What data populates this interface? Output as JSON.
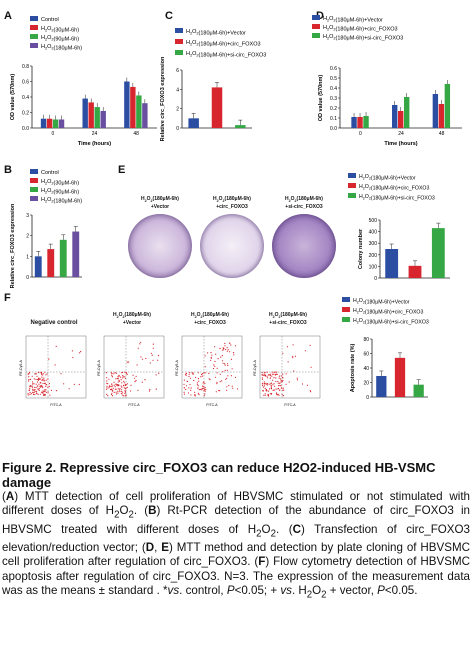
{
  "colors": {
    "blue": "#2b4ea2",
    "red": "#d7262e",
    "green": "#35a845",
    "purple": "#6a4fa0",
    "grey": "#777777"
  },
  "panels": {
    "A": {
      "label": "A",
      "legend": [
        "Control",
        "H2O2(30μM-6h)",
        "H2O2(90μM-6h)",
        "H2O2(180μM-6h)"
      ],
      "ylabel": "OD value (570nm)",
      "xlabel": "Time (hours)",
      "chart_data": {
        "type": "bar",
        "categories": [
          "0",
          "24",
          "48"
        ],
        "yticks": [
          "0.0",
          "0.2",
          "0.4",
          "0.6",
          "0.8"
        ],
        "ylim": [
          0,
          0.8
        ],
        "series": [
          {
            "name": "Control",
            "values": [
              0.12,
              0.38,
              0.6
            ]
          },
          {
            "name": "H2O2(30μM-6h)",
            "values": [
              0.12,
              0.33,
              0.53
            ]
          },
          {
            "name": "H2O2(90μM-6h)",
            "values": [
              0.11,
              0.27,
              0.42
            ]
          },
          {
            "name": "H2O2(180μM-6h)",
            "values": [
              0.11,
              0.22,
              0.32
            ]
          }
        ]
      }
    },
    "B": {
      "label": "B",
      "legend": [
        "Control",
        "H2O2(30μM-6h)",
        "H2O2(90μM-6h)",
        "H2O2(180μM-6h)"
      ],
      "ylabel": "Relative circ_FOXO3 expression",
      "chart_data": {
        "type": "bar",
        "categories": [
          "Control",
          "30",
          "90",
          "180"
        ],
        "yticks": [
          "0",
          "1",
          "2",
          "3"
        ],
        "ylim": [
          0,
          3
        ],
        "values": [
          1.0,
          1.35,
          1.8,
          2.2
        ]
      }
    },
    "C": {
      "label": "C",
      "legend": [
        "H2O2(180μM-6h)+Vector",
        "H2O2(180μM-6h)+circ_FOXO3",
        "H2O2(180μM-6h)+si-circ_FOXO3"
      ],
      "ylabel": "Relative circ_FOXO3 expression",
      "chart_data": {
        "type": "bar",
        "categories": [
          "Vector",
          "circ_FOXO3",
          "si-circ_FOXO3"
        ],
        "yticks": [
          "0",
          "2",
          "4",
          "6"
        ],
        "ylim": [
          0,
          6
        ],
        "values": [
          1.0,
          4.2,
          0.3
        ]
      }
    },
    "D": {
      "label": "D",
      "legend": [
        "H2O2(180μM-6h)+Vector",
        "H2O2(180μM-6h)+circ_FOXO3",
        "H2O2(180μM-6h)+si-circ_FOXO3"
      ],
      "ylabel": "OD value (570nm)",
      "xlabel": "Time (hours)",
      "chart_data": {
        "type": "bar",
        "categories": [
          "0",
          "24",
          "48"
        ],
        "yticks": [
          "0.0",
          "0.1",
          "0.2",
          "0.3",
          "0.4",
          "0.5",
          "0.6"
        ],
        "ylim": [
          0,
          0.6
        ],
        "series": [
          {
            "name": "H2O2(180μM-6h)+Vector",
            "values": [
              0.11,
              0.23,
              0.34
            ]
          },
          {
            "name": "H2O2(180μM-6h)+circ_FOXO3",
            "values": [
              0.11,
              0.17,
              0.24
            ]
          },
          {
            "name": "H2O2(180μM-6h)+si-circ_FOXO3",
            "values": [
              0.12,
              0.31,
              0.44
            ]
          }
        ]
      }
    },
    "E": {
      "label": "E",
      "dish_labels": [
        "H2O2(180μM-6h)\n+Vector",
        "H2O2(180μM-6h)\n+circ_FOXO3",
        "H2O2(180μM-6h)\n+si-circ_FOXO3"
      ],
      "legend": [
        "H2O2(180μM-6h)+Vector",
        "H2O2(180μM-6h)+circ_FOXO3",
        "H2O2(180μM-6h)+si-circ_FOXO3"
      ],
      "ylabel": "Colony number",
      "chart_data": {
        "type": "bar",
        "categories": [
          "Vector",
          "circ_FOXO3",
          "si-circ_FOXO3"
        ],
        "yticks": [
          "0",
          "100",
          "200",
          "300",
          "400",
          "500"
        ],
        "ylim": [
          0,
          500
        ],
        "values": [
          250,
          105,
          430
        ]
      }
    },
    "F": {
      "label": "F",
      "flow_labels": [
        "Negative control",
        "H2O2(180μM-6h)\n+Vector",
        "H2O2(180μM-6h)\n+circ_FOXO3",
        "H2O2(180μM-6h)\n+si-circ_FOXO3"
      ],
      "legend": [
        "H2O2(180μM-6h)+Vector",
        "H2O2(180μM-6h)+circ_FOXO3",
        "H2O2(180μM-6h)+si-circ_FOXO3"
      ],
      "ylabel": "Apoptosis rate (%)",
      "xaxis": "FITC-A",
      "yaxis": "PE-Cy5-A",
      "chart_data": {
        "type": "bar",
        "categories": [
          "Vector",
          "circ_FOXO3",
          "si-circ_FOXO3"
        ],
        "yticks": [
          "0",
          "20",
          "40",
          "60",
          "80"
        ],
        "ylim": [
          0,
          80
        ],
        "values": [
          29,
          54,
          17
        ]
      }
    }
  },
  "caption": {
    "title": "Figure 2. Repressive circ_FOXO3 can reduce H2O2-induced HB-VSMC damage",
    "body_html": "(<b>A</b>) MTT detection of cell proliferation of HBVSMC stimulated or not stimulated with different doses of H<sub>2</sub>O<sub>2</sub>. (<b>B</b>) Rt-PCR detection of the abundance of circ_FOXO3 in HBVSMC treated with different doses of H<sub>2</sub>O<sub>2</sub>. (<b>C</b>) Transfection of circ_FOXO3 elevation/reduction vector; (<b>D</b>, <b>E</b>) MTT method and detection by plate cloning of HBVSMC cell proliferation after regulation of circ_FOXO3. (<b>F</b>) Flow cytometry detection of HBVSMC apoptosis after regulation of circ_FOXO3. N=3. The expression of the measurement data was as the means ± standard . *<i>vs</i>. control, <i>P</i>&lt;0.05; + <i>vs</i>. H<sub>2</sub>O<sub>2</sub> + vector, <i>P</i>&lt;0.05."
  }
}
